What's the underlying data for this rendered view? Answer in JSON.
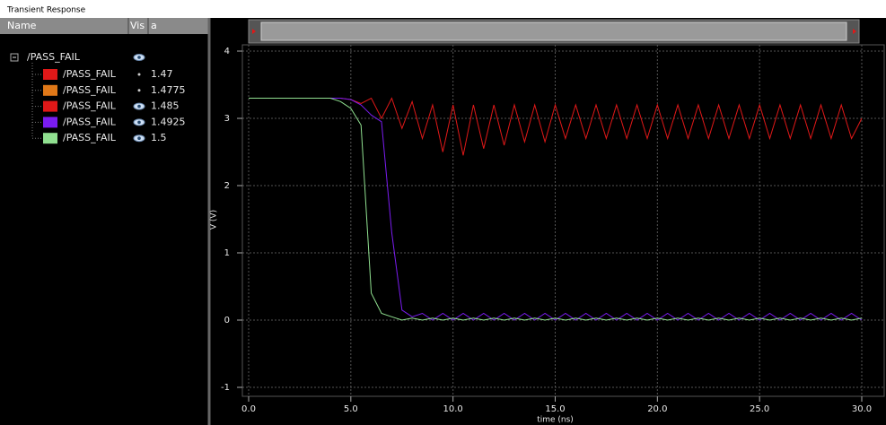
{
  "window": {
    "title": "Transient Response"
  },
  "panel": {
    "columns": [
      "Name",
      "Vis",
      "a"
    ],
    "root": "/PASS_FAIL",
    "signals": [
      {
        "name": "/PASS_FAIL",
        "param": "1.47",
        "color": "#e01818",
        "visible": false
      },
      {
        "name": "/PASS_FAIL",
        "param": "1.4775",
        "color": "#e07818",
        "visible": false
      },
      {
        "name": "/PASS_FAIL",
        "param": "1.485",
        "color": "#e01818",
        "visible": true
      },
      {
        "name": "/PASS_FAIL",
        "param": "1.4925",
        "color": "#7a1cf0",
        "visible": true
      },
      {
        "name": "/PASS_FAIL",
        "param": "1.5",
        "color": "#90e090",
        "visible": true
      }
    ]
  },
  "chart_data": {
    "type": "line",
    "xlabel": "time (ns)",
    "ylabel": "V (V)",
    "x": [
      0,
      0.5,
      1,
      1.5,
      2,
      2.5,
      3,
      3.5,
      4,
      4.5,
      5,
      5.5,
      6,
      6.5,
      7,
      7.5,
      8,
      8.5,
      9,
      9.5,
      10,
      10.5,
      11,
      11.5,
      12,
      12.5,
      13,
      13.5,
      14,
      14.5,
      15,
      15.5,
      16,
      16.5,
      17,
      17.5,
      18,
      18.5,
      19,
      19.5,
      20,
      20.5,
      21,
      21.5,
      22,
      22.5,
      23,
      23.5,
      24,
      24.5,
      25,
      25.5,
      26,
      26.5,
      27,
      27.5,
      28,
      28.5,
      29,
      29.5,
      30
    ],
    "series": [
      {
        "color": "#e01818",
        "values": [
          3.3,
          3.3,
          3.3,
          3.3,
          3.3,
          3.3,
          3.3,
          3.3,
          3.3,
          3.3,
          3.28,
          3.22,
          3.3,
          3.0,
          3.3,
          2.85,
          3.25,
          2.7,
          3.2,
          2.5,
          3.2,
          2.45,
          3.2,
          2.55,
          3.2,
          2.6,
          3.2,
          2.65,
          3.2,
          2.65,
          3.2,
          2.7,
          3.2,
          2.7,
          3.2,
          2.7,
          3.2,
          2.7,
          3.2,
          2.7,
          3.2,
          2.7,
          3.2,
          2.7,
          3.2,
          2.7,
          3.2,
          2.7,
          3.2,
          2.7,
          3.2,
          2.7,
          3.2,
          2.7,
          3.2,
          2.7,
          3.2,
          2.7,
          3.2,
          2.7,
          3.0
        ]
      },
      {
        "color": "#7a1cf0",
        "values": [
          3.3,
          3.3,
          3.3,
          3.3,
          3.3,
          3.3,
          3.3,
          3.3,
          3.3,
          3.3,
          3.28,
          3.2,
          3.05,
          2.95,
          1.3,
          0.15,
          0.05,
          0.1,
          0.0,
          0.1,
          0.0,
          0.1,
          0.0,
          0.1,
          0.0,
          0.1,
          0.0,
          0.1,
          0.0,
          0.1,
          0.0,
          0.1,
          0.0,
          0.1,
          0.0,
          0.1,
          0.0,
          0.1,
          0.0,
          0.1,
          0.0,
          0.1,
          0.0,
          0.1,
          0.0,
          0.1,
          0.0,
          0.1,
          0.0,
          0.1,
          0.0,
          0.1,
          0.0,
          0.1,
          0.0,
          0.1,
          0.0,
          0.1,
          0.0,
          0.1,
          0.0
        ]
      },
      {
        "color": "#90e090",
        "values": [
          3.3,
          3.3,
          3.3,
          3.3,
          3.3,
          3.3,
          3.3,
          3.3,
          3.3,
          3.25,
          3.15,
          2.9,
          0.4,
          0.1,
          0.05,
          0.0,
          0.03,
          0.0,
          0.03,
          0.0,
          0.03,
          0.0,
          0.03,
          0.0,
          0.03,
          0.0,
          0.03,
          0.0,
          0.03,
          0.0,
          0.03,
          0.0,
          0.03,
          0.0,
          0.03,
          0.0,
          0.03,
          0.0,
          0.03,
          0.0,
          0.03,
          0.0,
          0.03,
          0.0,
          0.03,
          0.0,
          0.03,
          0.0,
          0.03,
          0.0,
          0.03,
          0.0,
          0.03,
          0.0,
          0.03,
          0.0,
          0.03,
          0.0,
          0.03,
          0.0,
          0.03
        ]
      }
    ],
    "xlim": [
      0,
      30
    ],
    "xticks": [
      {
        "value": 0,
        "label": "0.0"
      },
      {
        "value": 5,
        "label": "5.0"
      },
      {
        "value": 10,
        "label": "10.0"
      },
      {
        "value": 15,
        "label": "15.0"
      },
      {
        "value": 20,
        "label": "20.0"
      },
      {
        "value": 25,
        "label": "25.0"
      },
      {
        "value": 30,
        "label": "30.0"
      }
    ],
    "ylim": [
      -1,
      4
    ],
    "yticks": [
      -1,
      0,
      1,
      2,
      3,
      4
    ],
    "grid": true
  }
}
